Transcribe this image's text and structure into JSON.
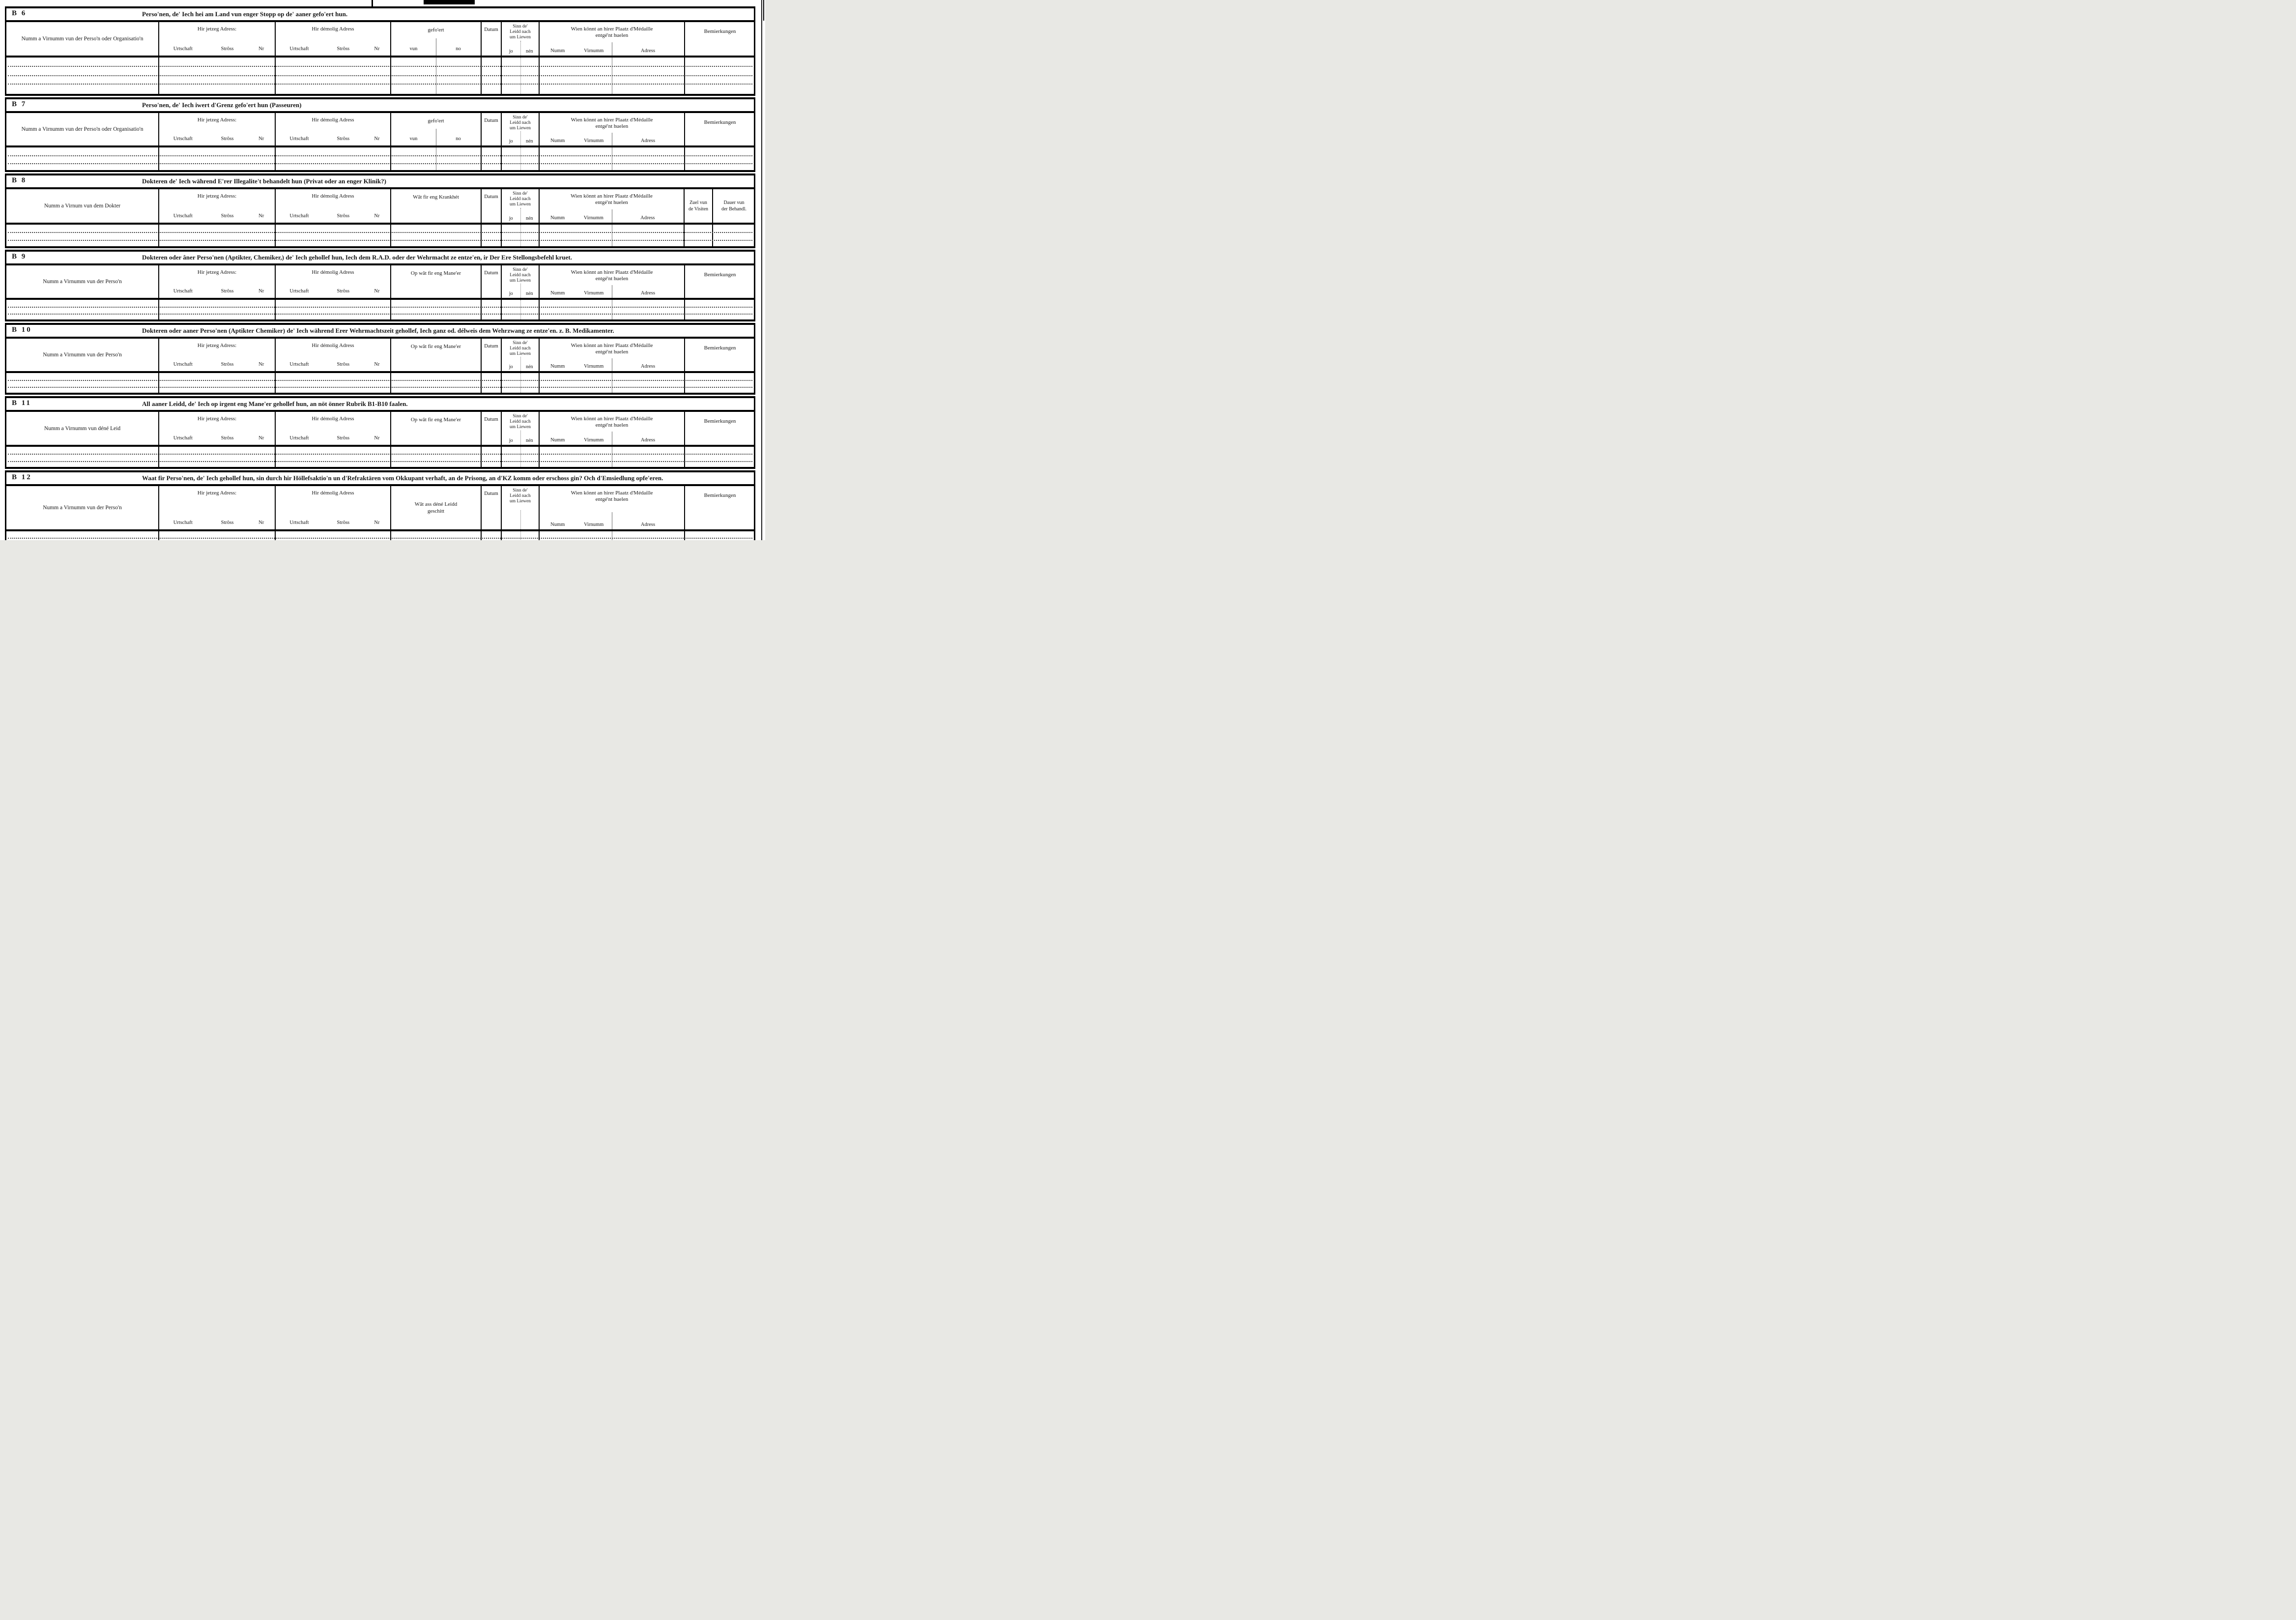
{
  "colors": {
    "ink": "#161616",
    "paper": "#ffffff"
  },
  "labels": {
    "now_address": "Hir jetzeg Adress:",
    "former_address": "Hir démolig Adress",
    "urtschaft": "Urtschaft",
    "stross": "Strôss",
    "nr": "Nr",
    "gefoert": "gefo'ert",
    "vun": "vun",
    "no": "no",
    "datum": "Datum",
    "alive_l1": "Sinn de'",
    "alive_l2": "Leidd nach",
    "alive_l3": "um Liewen",
    "jo": "jo",
    "nen": "nén",
    "medal_l1": "Wien könnt an hirer Plaatz d'Médaille",
    "medal_l2": "entgé'nt huelen",
    "numm": "Numm",
    "virnumm": "Virnumm",
    "adress": "Adress",
    "bemierkungen": "Bemierkungen",
    "krankheit": "Wât fir eng Krankhét",
    "maneer": "Op wât fir eng Mane'er",
    "geschitt_l1": "Wât ass déné Leidd",
    "geschitt_l2": "geschitt",
    "zuel_l1": "Zuel vun",
    "zuel_l2": "de Visiten",
    "dauer_l1": "Dauer vun",
    "dauer_l2": "der Behandl."
  },
  "sections": [
    {
      "code": "B 6",
      "title": "Perso'nen, de' Iech hei am Land vun enger Stopp op de' aaner gefo'ert hun.",
      "name_header": "Numm a Virnumm vun der Perso'n oder Organisatio'n",
      "rows": 3
    },
    {
      "code": "B 7",
      "title": "Perso'nen, de' Iech iwert d'Grenz gefo'ert hun (Passeuren)",
      "name_header": "Numm a Virnumm vun der Perso'n oder Organisatio'n",
      "rows": 2
    },
    {
      "code": "B 8",
      "title": "Dokteren de' Iech während E'rer Illegalite't behandelt hun (Privat oder an enger Klinik?)",
      "name_header": "Numm a Virnum vun dem Dokter",
      "rows": 2
    },
    {
      "code": "B 9",
      "title": "Dokteren oder âner Perso'nen (Aptikter, Chemiker,) de' Iech gehollef hun, Iech dem R.A.D. oder der Wehrmacht ze entze'en, ir Der Ere Stellongsbefehl kruet.",
      "name_header": "Numm a Virnumm vun der Perso'n",
      "rows": 2
    },
    {
      "code": "B 10",
      "title": "Dokteren oder aaner Perso'nen (Aptikter Chemiker) de' Iech während Erer Wehrmachtszeit gehollef, Iech ganz od. délweis dem Wehrzwang ze entze'en. z. B. Medikamenter.",
      "name_header": "Numm a Virnumm vun der Perso'n",
      "rows": 2
    },
    {
      "code": "B 11",
      "title": "All aaner Leidd, de' Iech op irgent eng Mane'er gehollef hun, an nöt önner Rubrik B1-B10 faalen.",
      "name_header": "Numm a Virnumm vun déné Leid",
      "rows": 2
    },
    {
      "code": "B 12",
      "title": "Waat fir Perso'nen, de' Iech gehollef hun, sin durch hir Höllefsaktio'n un d'Refraktären vom Okkupant verhaft, an de Prisong, an d'KZ komm oder erschoss gin? Och d'Emsiedlung opfe'eren.",
      "name_header": "Numm a Virnumm vun der Perso'n",
      "rows": 2
    }
  ]
}
